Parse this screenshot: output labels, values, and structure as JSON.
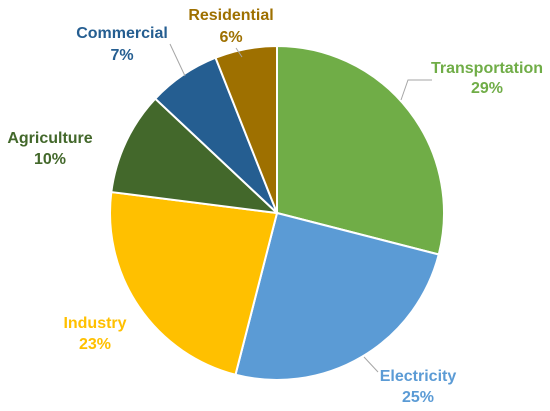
{
  "chart_data": {
    "type": "pie",
    "title": "",
    "slices": [
      {
        "label": "Transportation",
        "percent_label": "29%",
        "value": 29,
        "color": "#70ad47"
      },
      {
        "label": "Electricity",
        "percent_label": "25%",
        "value": 25,
        "color": "#5b9bd5"
      },
      {
        "label": "Industry",
        "percent_label": "23%",
        "value": 23,
        "color": "#ffc000"
      },
      {
        "label": "Agriculture",
        "percent_label": "10%",
        "value": 10,
        "color": "#43682b"
      },
      {
        "label": "Commercial",
        "percent_label": "7%",
        "value": 7,
        "color": "#255e91"
      },
      {
        "label": "Residential",
        "percent_label": "6%",
        "value": 6,
        "color": "#9e7000"
      }
    ],
    "label_colors": [
      "#70ad47",
      "#5b9bd5",
      "#ffc000",
      "#43682b",
      "#255e91",
      "#9e7000"
    ],
    "legend": "none",
    "start_angle": "12 o'clock",
    "direction": "clockwise"
  }
}
